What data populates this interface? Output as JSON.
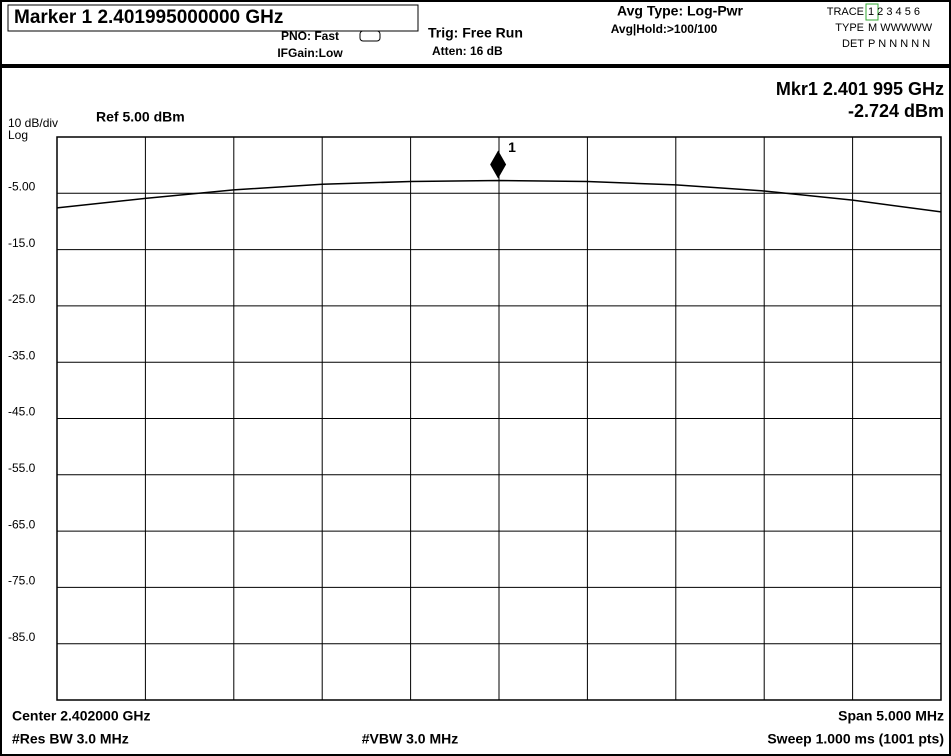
{
  "chart_data": {
    "type": "line",
    "header": {
      "marker_title": "Marker 1 2.401995000000 GHz",
      "pno": "PNO: Fast",
      "ifgain": "IFGain:Low",
      "trig": "Trig: Free Run",
      "atten": "Atten: 16 dB",
      "avg_type": "Avg Type: Log-Pwr",
      "avg_hold": "Avg|Hold:>100/100",
      "trace_label": "TRACE",
      "trace_values": "1 2 3 4 5 6",
      "type_label": "TYPE",
      "type_values": "M WWWWW",
      "det_label": "DET",
      "det_values": "P N N N N N"
    },
    "mkr_readout_freq": "Mkr1 2.401 995 GHz",
    "mkr_readout_level": "-2.724 dBm",
    "scale": "10 dB/div",
    "ref": "Ref 5.00 dBm",
    "log": "Log",
    "footer": {
      "center": "Center 2.402000 GHz",
      "span": "Span 5.000 MHz",
      "rbw": "#Res BW 3.0 MHz",
      "vbw": "#VBW 3.0 MHz",
      "sweep": "Sweep  1.000 ms (1001 pts)"
    },
    "x": [
      2.3995,
      2.4,
      2.4005,
      2.401,
      2.4015,
      2.402,
      2.4025,
      2.403,
      2.4035,
      2.404,
      2.4045
    ],
    "series": [
      {
        "color": "#000000",
        "values": [
          -7.6,
          -5.9,
          -4.4,
          -3.4,
          -2.9,
          -2.72,
          -2.9,
          -3.5,
          -4.6,
          -6.2,
          -8.3
        ]
      }
    ],
    "marker": {
      "label": "1",
      "x": 2.401995,
      "y": -2.724
    },
    "xlim": [
      2.3995,
      2.4045
    ],
    "ylim": [
      -95,
      5
    ],
    "yticks": [
      {
        "value": -5,
        "label": "-5.00"
      },
      {
        "value": -15,
        "label": "-15.0"
      },
      {
        "value": -25,
        "label": "-25.0"
      },
      {
        "value": -35,
        "label": "-35.0"
      },
      {
        "value": -45,
        "label": "-45.0"
      },
      {
        "value": -55,
        "label": "-55.0"
      },
      {
        "value": -65,
        "label": "-65.0"
      },
      {
        "value": -75,
        "label": "-75.0"
      },
      {
        "value": -85,
        "label": "-85.0"
      }
    ],
    "grid": true
  }
}
